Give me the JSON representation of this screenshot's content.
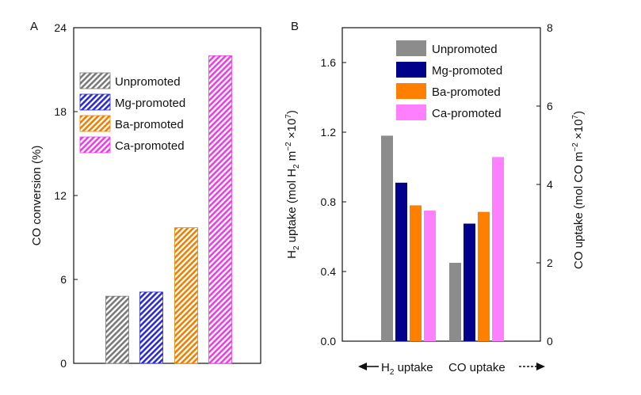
{
  "chart_data": [
    {
      "panel_label": "A",
      "type": "bar",
      "ylabel": "CO conversion (%)",
      "ylim": [
        0,
        24
      ],
      "yticks": [
        0,
        6,
        12,
        18,
        24
      ],
      "legend_position": "top-left",
      "categories": [
        "Unpromoted",
        "Mg-promoted",
        "Ba-promoted",
        "Ca-promoted"
      ],
      "values": [
        4.8,
        5.1,
        9.7,
        22.0
      ],
      "colors": [
        "#7a7a7a",
        "#2b2bd6",
        "#f07f00",
        "#ec3ee6"
      ],
      "pattern": "hatched"
    },
    {
      "panel_label": "B",
      "type": "bar",
      "ylabel_left": {
        "pre": "H",
        "sub1": "2",
        "mid": " uptake (mol H",
        "sub2": "2",
        "mid2": " m",
        "sup1": "−2",
        "post": " ×10",
        "sup2": "7",
        "end": ")"
      },
      "ylabel_right": {
        "pre": "CO uptake (mol CO m",
        "sup1": "−2",
        "mid": " ×10",
        "sup2": "7",
        "end": ")"
      },
      "ylim_left": [
        0,
        1.8
      ],
      "yticks_left": [
        "0.0",
        "0.4",
        "0.8",
        "1.2",
        "1.6"
      ],
      "ylim_right": [
        0,
        8
      ],
      "yticks_right": [
        "0",
        "2",
        "4",
        "6",
        "8"
      ],
      "legend_position": "top-right",
      "groups": [
        {
          "label_main": "H",
          "label_sub": "2",
          "label_rest": " uptake",
          "arrow": "left",
          "axis": "left"
        },
        {
          "label_main": "CO uptake",
          "label_sub": "",
          "label_rest": "",
          "arrow": "right",
          "axis": "right"
        }
      ],
      "series": [
        {
          "name": "Unpromoted",
          "color": "#8c8c8c",
          "values": [
            1.18,
            2.0
          ]
        },
        {
          "name": "Mg-promoted",
          "color": "#00008b",
          "values": [
            0.91,
            3.0
          ]
        },
        {
          "name": "Ba-promoted",
          "color": "#ff8000",
          "values": [
            0.78,
            3.3
          ]
        },
        {
          "name": "Ca-promoted",
          "color": "#ff80ff",
          "values": [
            0.75,
            4.7
          ]
        }
      ]
    }
  ]
}
